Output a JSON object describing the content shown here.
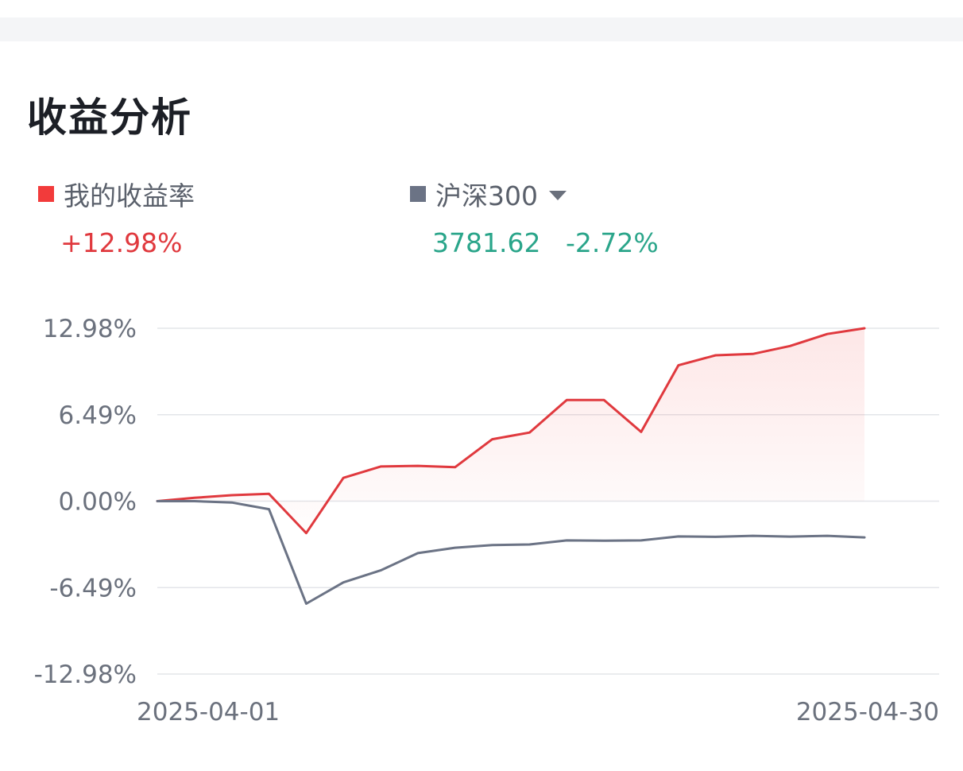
{
  "header": {
    "title": "收益分析"
  },
  "legend": {
    "mine": {
      "label": "我的收益率",
      "value": "+12.98%",
      "color": "#ea3f3f"
    },
    "benchmark": {
      "label": "沪深300",
      "index_value": "3781.62",
      "change": "-2.72%",
      "color": "#6b7385",
      "has_dropdown": true
    }
  },
  "chart_data": {
    "type": "line",
    "x_labels": [
      "2025-04-01",
      "2025-04-30"
    ],
    "ylim": [
      -12.98,
      12.98
    ],
    "y_ticks": [
      12.98,
      6.49,
      0.0,
      -6.49,
      -12.98
    ],
    "y_tick_labels": [
      "12.98%",
      "6.49%",
      "0.00%",
      "-6.49%",
      "-12.98%"
    ],
    "grid": true,
    "series": [
      {
        "name": "我的收益率",
        "color": "#e0393e",
        "fill": true,
        "values": [
          0.0,
          0.25,
          0.45,
          0.55,
          -2.4,
          1.75,
          2.6,
          2.65,
          2.55,
          4.65,
          5.15,
          7.6,
          7.6,
          5.2,
          10.2,
          10.95,
          11.05,
          11.65,
          12.55,
          12.98
        ]
      },
      {
        "name": "沪深300",
        "color": "#6b7385",
        "fill": false,
        "values": [
          0.0,
          0.0,
          -0.1,
          -0.6,
          -7.7,
          -6.1,
          -5.2,
          -3.9,
          -3.5,
          -3.3,
          -3.25,
          -2.95,
          -2.97,
          -2.95,
          -2.65,
          -2.68,
          -2.6,
          -2.66,
          -2.6,
          -2.72
        ]
      }
    ]
  }
}
